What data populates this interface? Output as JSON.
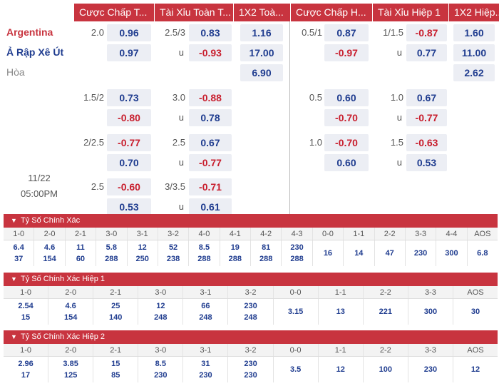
{
  "header": {
    "cols": [
      "Cược Chấp T...",
      "Tài Xỉu Toàn T...",
      "1X2 Toà...",
      "Cược Chấp H...",
      "Tài Xỉu Hiệp 1",
      "1X2 Hiệp..."
    ]
  },
  "match": {
    "team_home": "Argentina",
    "team_away": "Ả Rập Xê Út",
    "draw_label": "Hòa",
    "date": "11/22",
    "time": "05:00PM"
  },
  "odds": {
    "rows": [
      {
        "hcap_ft": "2.0",
        "hcap_ft_h": "0.96",
        "hcap_ft_a": "0.97",
        "ou_ft": "2.5/3",
        "ou_ft_o": "0.83",
        "ou_ft_u_label": "u",
        "ou_ft_u": "-0.93",
        "x12_ft_h": "1.16",
        "x12_ft_a": "17.00",
        "x12_ft_d": "6.90",
        "hcap_h1": "0.5/1",
        "hcap_h1_h": "0.87",
        "hcap_h1_a": "-0.97",
        "ou_h1": "1/1.5",
        "ou_h1_o": "-0.87",
        "ou_h1_u_label": "u",
        "ou_h1_u": "0.77",
        "x12_h1_h": "1.60",
        "x12_h1_a": "11.00",
        "x12_h1_d": "2.62"
      },
      {
        "hcap_ft": "1.5/2",
        "hcap_ft_h": "0.73",
        "hcap_ft_a": "-0.80",
        "ou_ft": "3.0",
        "ou_ft_o": "-0.88",
        "ou_ft_u_label": "u",
        "ou_ft_u": "0.78",
        "hcap_h1": "0.5",
        "hcap_h1_h": "0.60",
        "hcap_h1_a": "-0.70",
        "ou_h1": "1.0",
        "ou_h1_o": "0.67",
        "ou_h1_u_label": "u",
        "ou_h1_u": "-0.77"
      },
      {
        "hcap_ft": "2/2.5",
        "hcap_ft_h": "-0.77",
        "hcap_ft_a": "0.70",
        "ou_ft": "2.5",
        "ou_ft_o": "0.67",
        "ou_ft_u_label": "u",
        "ou_ft_u": "-0.77",
        "hcap_h1": "1.0",
        "hcap_h1_h": "-0.70",
        "hcap_h1_a": "0.60",
        "ou_h1": "1.5",
        "ou_h1_o": "-0.63",
        "ou_h1_u_label": "u",
        "ou_h1_u": "0.53"
      },
      {
        "hcap_ft": "2.5",
        "hcap_ft_h": "-0.60",
        "hcap_ft_a": "0.53",
        "ou_ft": "3/3.5",
        "ou_ft_o": "-0.71",
        "ou_ft_u_label": "u",
        "ou_ft_u": "0.61"
      }
    ]
  },
  "correct_score_ft": {
    "title": "Tỷ Số Chính Xác",
    "labels": [
      "1-0",
      "2-0",
      "2-1",
      "3-0",
      "3-1",
      "3-2",
      "4-0",
      "4-1",
      "4-2",
      "4-3",
      "0-0",
      "1-1",
      "2-2",
      "3-3",
      "4-4",
      "AOS"
    ],
    "top": [
      "6.4",
      "4.6",
      "11",
      "5.8",
      "12",
      "52",
      "8.5",
      "19",
      "81",
      "230",
      "16",
      "14",
      "47",
      "230",
      "300",
      "6.8"
    ],
    "bottom": [
      "37",
      "154",
      "60",
      "288",
      "250",
      "238",
      "288",
      "288",
      "288",
      "288",
      "",
      "",
      "",
      "",
      "",
      ""
    ]
  },
  "correct_score_h1": {
    "title": "Tỷ Số Chính Xác Hiệp 1",
    "labels": [
      "1-0",
      "2-0",
      "2-1",
      "3-0",
      "3-1",
      "3-2",
      "0-0",
      "1-1",
      "2-2",
      "3-3",
      "AOS"
    ],
    "top": [
      "2.54",
      "4.6",
      "25",
      "12",
      "66",
      "230",
      "3.15",
      "13",
      "221",
      "300",
      "30"
    ],
    "bottom": [
      "15",
      "154",
      "140",
      "248",
      "248",
      "248",
      "",
      "",
      "",
      "",
      ""
    ]
  },
  "correct_score_h2": {
    "title": "Tỷ Số Chính Xác Hiệp 2",
    "labels": [
      "1-0",
      "2-0",
      "2-1",
      "3-0",
      "3-1",
      "3-2",
      "0-0",
      "1-1",
      "2-2",
      "3-3",
      "AOS"
    ],
    "top": [
      "2.96",
      "3.85",
      "15",
      "8.5",
      "31",
      "230",
      "3.5",
      "12",
      "100",
      "230",
      "12"
    ],
    "bottom": [
      "17",
      "125",
      "85",
      "230",
      "230",
      "230",
      "",
      "",
      "",
      "",
      ""
    ]
  },
  "colors": {
    "brand_red": "#c8343f",
    "positive": "#1f3c8f",
    "negative": "#c81e2d",
    "cell_bg": "#eceef4"
  }
}
